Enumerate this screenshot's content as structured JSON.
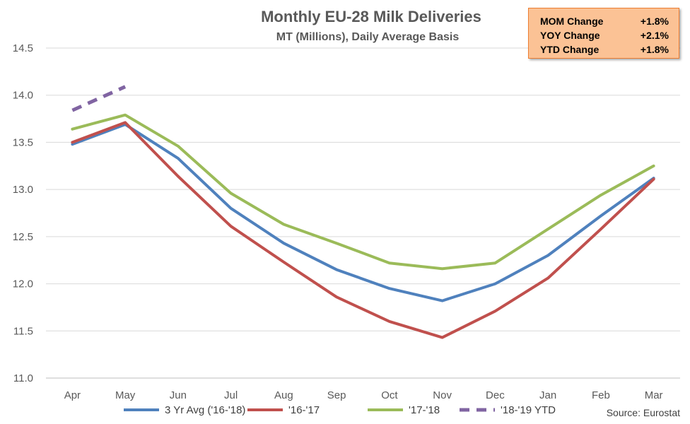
{
  "chart_data": {
    "type": "line",
    "title": "Monthly EU-28 Milk Deliveries",
    "subtitle": "MT (Millions), Daily Average Basis",
    "categories": [
      "Apr",
      "May",
      "Jun",
      "Jul",
      "Aug",
      "Sep",
      "Oct",
      "Nov",
      "Dec",
      "Jan",
      "Feb",
      "Mar"
    ],
    "ylim": [
      11.0,
      14.5
    ],
    "yticks": [
      "11.0",
      "11.5",
      "12.0",
      "12.5",
      "13.0",
      "13.5",
      "14.0",
      "14.5"
    ],
    "grid": true,
    "legend_position": "bottom",
    "series": [
      {
        "name": "3 Yr Avg ('16-'18)",
        "color": "#4f81bd",
        "dashed": false,
        "values": [
          13.48,
          13.69,
          13.33,
          12.8,
          12.43,
          12.15,
          11.95,
          11.82,
          12.0,
          12.3,
          12.72,
          13.12
        ]
      },
      {
        "name": "'16-'17",
        "color": "#c0504d",
        "dashed": false,
        "values": [
          13.5,
          13.71,
          13.14,
          12.61,
          12.23,
          11.86,
          11.6,
          11.43,
          11.71,
          12.06,
          12.58,
          13.11
        ]
      },
      {
        "name": "'17-'18",
        "color": "#9bbb59",
        "dashed": false,
        "values": [
          13.64,
          13.79,
          13.46,
          12.96,
          12.63,
          12.43,
          12.22,
          12.16,
          12.22,
          12.58,
          12.94,
          13.25
        ]
      },
      {
        "name": "'18-'19 YTD",
        "color": "#8064a2",
        "dashed": true,
        "values": [
          13.84,
          14.09,
          null,
          null,
          null,
          null,
          null,
          null,
          null,
          null,
          null,
          null
        ]
      }
    ],
    "source": "Source: Eurostat"
  },
  "stats": [
    {
      "label": "MOM Change",
      "value": "+1.8%"
    },
    {
      "label": "YOY Change",
      "value": "+2.1%"
    },
    {
      "label": "YTD Change",
      "value": "+1.8%"
    }
  ]
}
